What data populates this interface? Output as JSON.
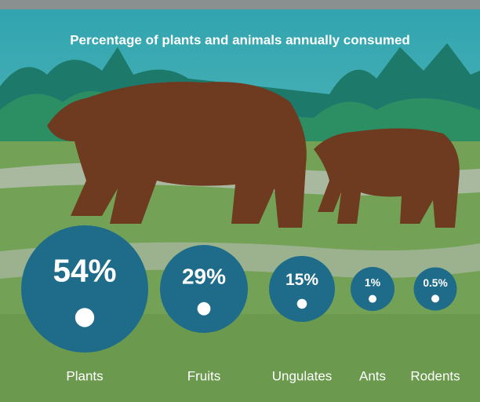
{
  "chart_data": {
    "type": "bubble",
    "title": "Percentage of plants and animals annually consumed",
    "categories": [
      "Plants",
      "Fruits",
      "Ungulates",
      "Ants",
      "Rodents"
    ],
    "values": [
      54,
      29,
      15,
      1,
      0.5
    ],
    "value_labels": [
      "54%",
      "29%",
      "15%",
      "1%",
      "0.5%"
    ],
    "color": "#1e6c8a"
  }
}
